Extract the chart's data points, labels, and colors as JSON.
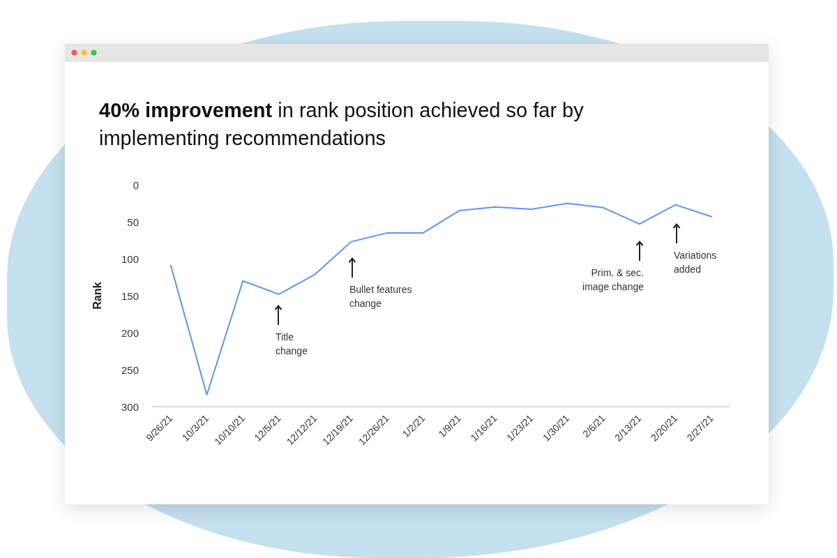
{
  "chart_data": {
    "type": "line",
    "title": "40% improvement in rank position achieved so far by implementing recommendations",
    "ylabel": "Rank",
    "categories": [
      "9/26/21",
      "10/3/21",
      "10/10/21",
      "12/5/21",
      "12/12/21",
      "12/19/21",
      "12/26/21",
      "1/2/21",
      "1/9/21",
      "1/16/21",
      "1/23/21",
      "1/30/21",
      "2/6/21",
      "2/13/21",
      "2/20/21",
      "2/27/21"
    ],
    "series": [
      {
        "color": "#5b95f9",
        "values": [
          109,
          284,
          130,
          148,
          121,
          77,
          65,
          65,
          35,
          30,
          33,
          25,
          31,
          53,
          27,
          43
        ]
      }
    ],
    "ylim": [
      300,
      0
    ],
    "yticks": [
      0,
      50,
      100,
      150,
      200,
      250,
      300
    ],
    "grid": false,
    "marker": "none",
    "line_style": "solid",
    "annotations": [
      "Title change",
      "Bullet features change",
      "Prim. & sec. image change",
      "Variations added"
    ]
  }
}
